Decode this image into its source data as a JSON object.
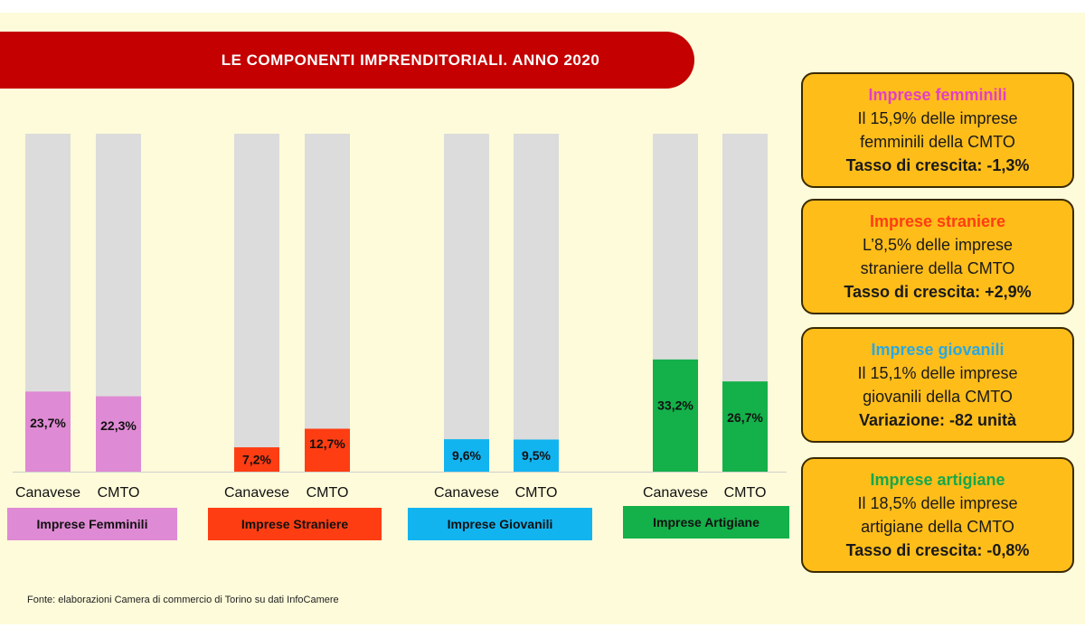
{
  "title": "LE COMPONENTI IMPRENDITORIALI. ANNO 2020",
  "source": "Fonte: elaborazioni Camera di commercio di Torino su dati InfoCamere",
  "chart_data": {
    "type": "bar",
    "title": "LE COMPONENTI IMPRENDITORIALI. ANNO 2020",
    "ylim": [
      0,
      100
    ],
    "bar_labels": [
      "Canavese",
      "CMTO"
    ],
    "groups": [
      {
        "name": "Imprese Femminili",
        "color": "#df8ad4",
        "values": [
          23.7,
          22.3
        ],
        "labels": [
          "23,7%",
          "22,3%"
        ]
      },
      {
        "name": "Imprese  Straniere",
        "color": "#ff3d12",
        "values": [
          7.2,
          12.7
        ],
        "labels": [
          "7,2%",
          "12,7%"
        ]
      },
      {
        "name": "Imprese Giovanili",
        "color": "#12b4f0",
        "values": [
          9.6,
          9.5
        ],
        "labels": [
          "9,6%",
          "9,5%"
        ]
      },
      {
        "name": "Imprese Artigiane",
        "color": "#14b04a",
        "values": [
          33.2,
          26.7
        ],
        "labels": [
          "33,2%",
          "26,7%"
        ]
      }
    ],
    "track_color": "#dcdcdc"
  },
  "info_boxes": [
    {
      "heading": "Imprese femminili",
      "heading_color": "#e23fc8",
      "line1": "Il 15,9% delle imprese",
      "line2": "femminili della CMTO",
      "rate_label": "Tasso di crescita: -1,3%",
      "rate_value": ""
    },
    {
      "heading": "Imprese straniere",
      "heading_color": "#ff3d12",
      "line1": "L’8,5% delle imprese",
      "line2": "straniere della CMTO",
      "rate_label": "Tasso di crescita: +2,9%",
      "rate_value": ""
    },
    {
      "heading": "Imprese giovanili",
      "heading_color": "#2aa8e0",
      "line1": "Il 15,1% delle imprese",
      "line2": "giovanili della CMTO",
      "rate_label": "Variazione",
      "rate_value": ": -82 unità"
    },
    {
      "heading": "Imprese artigiane",
      "heading_color": "#16a84a",
      "line1": "Il 18,5% delle imprese",
      "line2": "artigiane della CMTO",
      "rate_label": "Tasso di crescita: -0,8%",
      "rate_value": ""
    }
  ]
}
